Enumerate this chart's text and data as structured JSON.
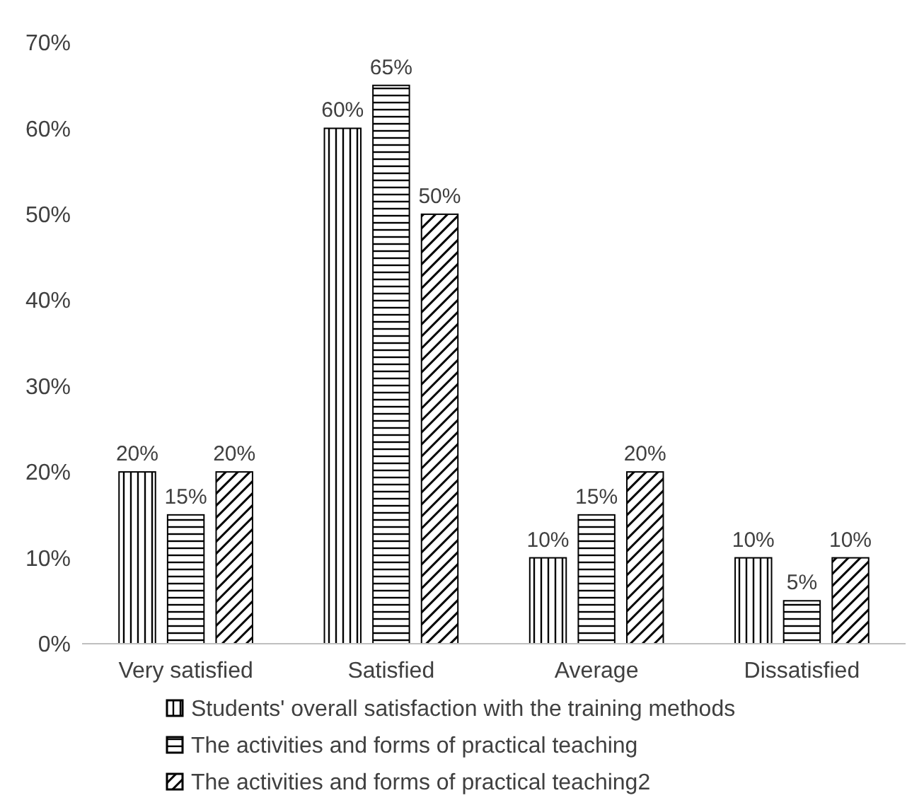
{
  "chart_data": {
    "type": "bar",
    "categories": [
      "Very satisfied",
      "Satisfied",
      "Average",
      "Dissatisfied"
    ],
    "series": [
      {
        "name": "Students' overall satisfaction with the training methods",
        "color": "#000000",
        "values": [
          20,
          60,
          10,
          10
        ]
      },
      {
        "name": "The activities and forms of practical teaching",
        "color": "#000000",
        "values": [
          15,
          65,
          15,
          5
        ]
      },
      {
        "name": "The activities and forms of practical teaching2",
        "color": "#000000",
        "values": [
          20,
          50,
          20,
          10
        ]
      }
    ],
    "ylim": [
      0,
      70
    ],
    "yticks": [
      {
        "value": 0,
        "label": "0%"
      },
      {
        "value": 10,
        "label": "10%"
      },
      {
        "value": 20,
        "label": "20%"
      },
      {
        "value": 30,
        "label": "30%"
      },
      {
        "value": 40,
        "label": "40%"
      },
      {
        "value": 50,
        "label": "50%"
      },
      {
        "value": 60,
        "label": "60%"
      },
      {
        "value": 70,
        "label": "70%"
      }
    ],
    "value_labels": [
      [
        "20%",
        "60%",
        "10%",
        "10%"
      ],
      [
        "15%",
        "65%",
        "15%",
        "5%"
      ],
      [
        "20%",
        "50%",
        "20%",
        "10%"
      ]
    ],
    "legend": "bottom",
    "grid": false
  }
}
